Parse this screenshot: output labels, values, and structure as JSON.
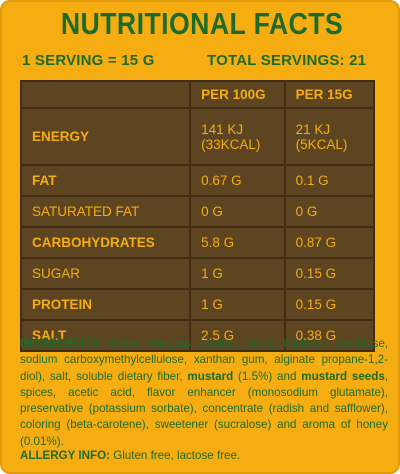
{
  "title": "NUTRITIONAL FACTS",
  "serving_size": "1 SERVING = 15 G",
  "total_servings": "TOTAL SERVINGS: 21",
  "table": {
    "headers": [
      "",
      "PER 100G",
      "PER 15G"
    ],
    "rows": [
      {
        "name": "ENERGY",
        "per100_line1": "141 KJ",
        "per100_line2": "(33KCAL)",
        "per15_line1": "21 KJ",
        "per15_line2": "(5KCAL)"
      },
      {
        "name": "FAT",
        "per100": "0.67 G",
        "per15": "0.1 G"
      },
      {
        "name": "SATURATED FAT",
        "per100": "0 G",
        "per15": "0 G"
      },
      {
        "name": "CARBOHYDRATES",
        "per100": "5.8 G",
        "per15": "0.87 G"
      },
      {
        "name": "SUGAR",
        "per100": "1 G",
        "per15": "0.15 G"
      },
      {
        "name": "PROTEIN",
        "per100": "1 G",
        "per15": "0.15 G"
      },
      {
        "name": "SALT",
        "per100": "2.5 G",
        "per15": "0.38 G"
      }
    ]
  },
  "ingredients": {
    "label": "INGREDIENTS:",
    "part1": " Water, vinegars (alcohol, cider), thickener (cellulose, sodium carboxymethylcellulose, xanthan gum, alginate propane-1,2-diol), salt, soluble dietary fiber, ",
    "bold1": "mustard",
    "part2": " (1.5%) and ",
    "bold2": "mustard seeds",
    "part3": ", spices, acetic acid, flavor enhancer (monosodium glutamate), preservative (potassium sorbate), concentrate (radish and safflower), coloring (beta-carotene), sweetener (sucralose) and aroma of honey (0.01%)."
  },
  "allergy": {
    "label": "ALLERGY INFO:",
    "text": " Gluten free, lactose free."
  },
  "colors": {
    "background": "#f6ad12",
    "green_text": "#1d6b2a",
    "table_fill": "#5c4520",
    "table_text": "#f6ad12"
  }
}
